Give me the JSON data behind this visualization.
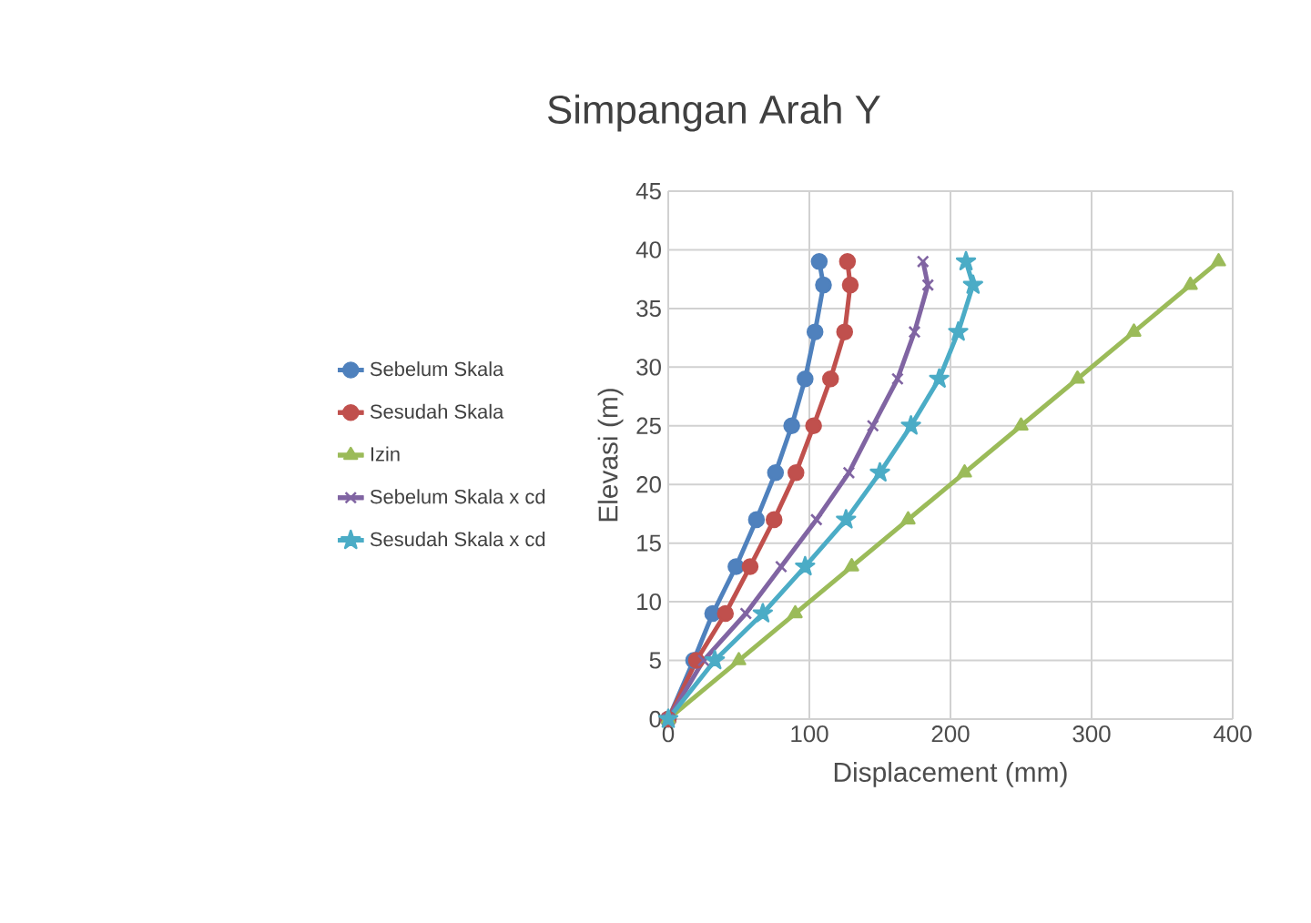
{
  "chart_data": {
    "type": "line",
    "title": "Simpangan Arah Y",
    "xlabel": "Displacement (mm)",
    "ylabel": "Elevasi (m)",
    "xlim": [
      0,
      400
    ],
    "xticks": [
      0,
      100,
      200,
      300,
      400
    ],
    "ylim": [
      0,
      45
    ],
    "yticks": [
      0,
      5,
      10,
      15,
      20,
      25,
      30,
      35,
      40,
      45
    ],
    "grid": true,
    "legend": "left",
    "series": [
      {
        "name": "Sebelum Skala",
        "color": "#4f81bd",
        "marker": "circle",
        "x": [
          0,
          18,
          31.5,
          48,
          62.5,
          76,
          87.5,
          97,
          104,
          110,
          107
        ],
        "values": [
          0,
          5,
          9,
          13,
          17,
          21,
          25,
          29,
          33,
          37,
          39
        ]
      },
      {
        "name": "Sesudah Skala",
        "color": "#c0504d",
        "marker": "circle",
        "x": [
          0,
          20,
          40.5,
          58,
          75,
          90.5,
          103,
          115,
          125,
          129,
          127
        ],
        "values": [
          0,
          5,
          9,
          13,
          17,
          21,
          25,
          29,
          33,
          37,
          39
        ]
      },
      {
        "name": "Izin",
        "color": "#9bbb59",
        "marker": "triangle",
        "x": [
          0,
          50,
          90,
          130,
          170,
          210,
          250,
          290,
          330,
          370,
          390
        ],
        "values": [
          0,
          5,
          9,
          13,
          17,
          21,
          25,
          29,
          33,
          37,
          39
        ]
      },
      {
        "name": "Sebelum Skala x cd",
        "color": "#8064a2",
        "marker": "cross",
        "x": [
          0,
          25,
          55,
          80,
          105,
          128,
          145,
          162.5,
          174.5,
          184,
          180.5
        ],
        "values": [
          0,
          5,
          9,
          13,
          17,
          21,
          25,
          29,
          33,
          37,
          39
        ]
      },
      {
        "name": "Sesudah Skala x cd",
        "color": "#4bacc6",
        "marker": "star",
        "x": [
          0,
          33,
          67,
          97,
          126,
          150,
          172,
          192,
          205.5,
          216,
          211
        ],
        "values": [
          0,
          5,
          9,
          13,
          17,
          21,
          25,
          29,
          33,
          37,
          39
        ]
      }
    ]
  }
}
